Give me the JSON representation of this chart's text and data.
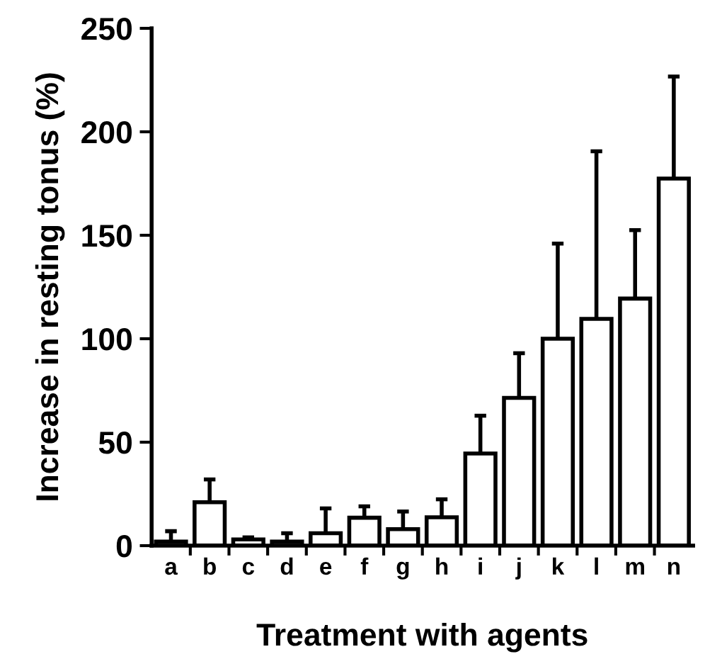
{
  "chart_data": {
    "type": "bar",
    "xlabel": "Treatment with agents",
    "ylabel": "Increase in resting tonus (%)",
    "categories": [
      "a",
      "b",
      "c",
      "d",
      "e",
      "f",
      "g",
      "h",
      "i",
      "j",
      "k",
      "l",
      "m",
      "n"
    ],
    "values": [
      2,
      21,
      3,
      2,
      6,
      13.5,
      8,
      13.7,
      44.5,
      71.4,
      100,
      109.6,
      119.4,
      177.4
    ],
    "errors": [
      [
        2,
        7
      ],
      [
        21,
        32
      ],
      [
        3,
        4
      ],
      [
        2,
        6
      ],
      [
        6,
        18
      ],
      [
        13.5,
        19
      ],
      [
        8,
        16.5
      ],
      [
        13.7,
        22.4
      ],
      [
        44.5,
        62.8
      ],
      [
        71.4,
        93
      ],
      [
        100,
        146
      ],
      [
        109.6,
        190.6
      ],
      [
        119.4,
        152.5
      ],
      [
        177.4,
        226.7
      ]
    ],
    "color": "#ffffff",
    "ylim": [
      0,
      250
    ],
    "yticks": [
      0,
      50,
      100,
      150,
      200,
      250
    ],
    "grid": false,
    "legend": false
  }
}
